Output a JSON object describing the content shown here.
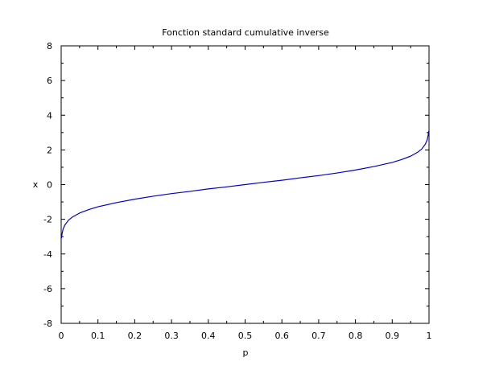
{
  "chart_data": {
    "type": "line",
    "title": "Fonction standard cumulative inverse",
    "xlabel": "p",
    "ylabel": "x",
    "xlim": [
      0,
      1
    ],
    "ylim": [
      -8,
      8
    ],
    "x_ticks": [
      0,
      0.1,
      0.2,
      0.3,
      0.4,
      0.5,
      0.6,
      0.7,
      0.8,
      0.9,
      1
    ],
    "x_tick_labels": [
      "0",
      "0.1",
      "0.2",
      "0.3",
      "0.4",
      "0.5",
      "0.6",
      "0.7",
      "0.8",
      "0.9",
      "1"
    ],
    "y_ticks": [
      -8,
      -6,
      -4,
      -2,
      0,
      2,
      4,
      6,
      8
    ],
    "y_tick_labels": [
      "-8",
      "-6",
      "-4",
      "-2",
      "0",
      "2",
      "4",
      "6",
      "8"
    ],
    "grid": false,
    "series": [
      {
        "color": "#0000cc",
        "x": [
          0.001,
          0.002,
          0.005,
          0.01,
          0.02,
          0.03,
          0.05,
          0.075,
          0.1,
          0.15,
          0.2,
          0.25,
          0.3,
          0.35,
          0.4,
          0.45,
          0.5,
          0.55,
          0.6,
          0.65,
          0.7,
          0.75,
          0.8,
          0.85,
          0.9,
          0.925,
          0.95,
          0.97,
          0.98,
          0.99,
          0.995,
          0.998,
          0.999
        ],
        "y": [
          -3.09,
          -2.88,
          -2.58,
          -2.33,
          -2.05,
          -1.88,
          -1.64,
          -1.44,
          -1.28,
          -1.04,
          -0.84,
          -0.67,
          -0.52,
          -0.39,
          -0.25,
          -0.13,
          0.0,
          0.13,
          0.25,
          0.39,
          0.52,
          0.67,
          0.84,
          1.04,
          1.28,
          1.44,
          1.64,
          1.88,
          2.05,
          2.33,
          2.58,
          2.88,
          3.09
        ]
      }
    ]
  }
}
